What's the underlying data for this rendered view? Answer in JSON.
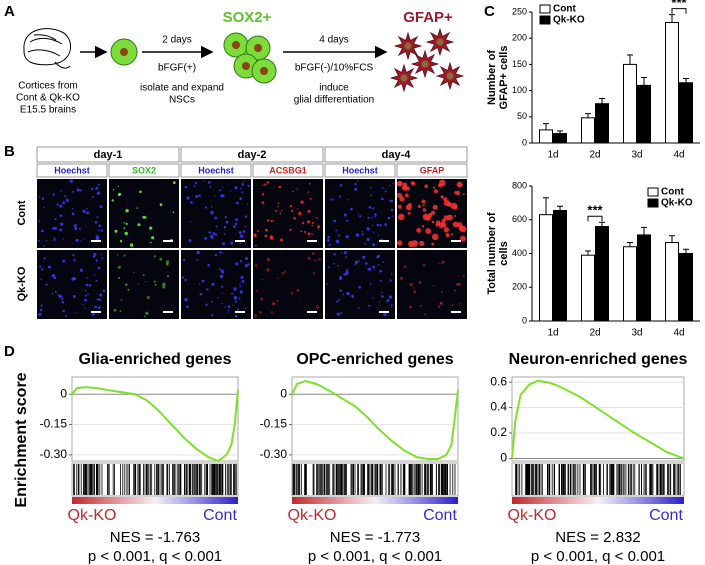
{
  "panels": [
    "A",
    "B",
    "C",
    "D"
  ],
  "schematic": {
    "source": [
      "Cortices from",
      "Cont & Qk-KO",
      "E15.5 brains"
    ],
    "step1": {
      "duration": "2 days",
      "condition": "bFGF(+)",
      "description": [
        "isolate and expand",
        "NSCs"
      ]
    },
    "stage1": "SOX2+",
    "step2": {
      "duration": "4 days",
      "condition": "bFGF(-)/10%FCS",
      "description": [
        "induce",
        "glial differentiation"
      ]
    },
    "stage2": "GFAP+"
  },
  "micrographs": {
    "days": [
      "day-1",
      "day-2",
      "day-4"
    ],
    "stains": [
      "Hoechst",
      "SOX2",
      "Hoechst",
      "ACSBG1",
      "Hoechst",
      "GFAP"
    ],
    "rows": [
      "Cont",
      "Qk-KO"
    ]
  },
  "enrichment_axis_label": "Enrichment score",
  "chart_data": [
    {
      "type": "bar",
      "ylabel": [
        "Number of",
        "GFAP+ cells"
      ],
      "categories": [
        "1d",
        "2d",
        "3d",
        "4d"
      ],
      "series": [
        {
          "name": "Cont",
          "color": "#ffffff",
          "values": [
            25,
            48,
            150,
            230
          ],
          "errors": [
            12,
            8,
            18,
            15
          ]
        },
        {
          "name": "Qk-KO",
          "color": "#000000",
          "values": [
            18,
            75,
            110,
            115
          ],
          "errors": [
            5,
            10,
            15,
            8
          ]
        }
      ],
      "ylim": [
        0,
        250
      ],
      "yticks": [
        0,
        50,
        100,
        150,
        200,
        250
      ],
      "grid": false,
      "legend": "top-left",
      "annotation": "***"
    },
    {
      "type": "bar",
      "ylabel": [
        "Total number of",
        "cells"
      ],
      "categories": [
        "1d",
        "2d",
        "3d",
        "4d"
      ],
      "series": [
        {
          "name": "Cont",
          "color": "#ffffff",
          "values": [
            630,
            390,
            440,
            465
          ],
          "errors": [
            100,
            25,
            25,
            40
          ]
        },
        {
          "name": "Qk-KO",
          "color": "#000000",
          "values": [
            655,
            560,
            510,
            400
          ],
          "errors": [
            25,
            25,
            45,
            25
          ]
        }
      ],
      "ylim": [
        0,
        800
      ],
      "yticks": [
        0,
        200,
        400,
        600,
        800
      ],
      "grid": false,
      "legend": "top-right",
      "annotation": "***"
    },
    {
      "type": "line",
      "title": "Glia-enriched genes",
      "color": "#7fe02a",
      "x": [
        0,
        3,
        8,
        15,
        22,
        30,
        38,
        45,
        52,
        60,
        68,
        75,
        82,
        88,
        93,
        96,
        98,
        100
      ],
      "values": [
        0,
        0.03,
        0.035,
        0.03,
        0.02,
        0.01,
        0,
        -0.03,
        -0.08,
        -0.15,
        -0.22,
        -0.27,
        -0.31,
        -0.33,
        -0.3,
        -0.25,
        -0.15,
        0.02
      ],
      "xlim": [
        0,
        100
      ],
      "ylim": [
        -0.33,
        0.085
      ],
      "yticks": [
        0,
        -0.15,
        {
          "value": -0.3,
          "label": "-0.30"
        }
      ],
      "grid": true,
      "rank_labels": [
        "Qk-KO",
        "Cont"
      ],
      "stats": [
        "NES = -1.763",
        "p < 0.001, q < 0.001"
      ]
    },
    {
      "type": "line",
      "title": "OPC-enriched genes",
      "color": "#7fe02a",
      "x": [
        0,
        3,
        8,
        15,
        22,
        30,
        38,
        45,
        52,
        60,
        68,
        75,
        82,
        88,
        93,
        96,
        98,
        100
      ],
      "values": [
        0,
        0.05,
        0.065,
        0.05,
        0.02,
        -0.02,
        -0.06,
        -0.11,
        -0.17,
        -0.23,
        -0.28,
        -0.31,
        -0.32,
        -0.32,
        -0.3,
        -0.25,
        -0.12,
        0.02
      ],
      "xlim": [
        0,
        100
      ],
      "ylim": [
        -0.33,
        0.085
      ],
      "yticks": [
        0,
        -0.15,
        {
          "value": -0.3,
          "label": "-0.30"
        }
      ],
      "grid": true,
      "rank_labels": [
        "Qk-KO",
        "Cont"
      ],
      "stats": [
        "NES = -1.773",
        "p < 0.001, q < 0.001"
      ]
    },
    {
      "type": "line",
      "title": "Neuron-enriched genes",
      "color": "#7fe02a",
      "x": [
        0,
        2,
        5,
        10,
        15,
        20,
        25,
        30,
        40,
        50,
        60,
        70,
        80,
        90,
        100
      ],
      "values": [
        0,
        0.3,
        0.5,
        0.58,
        0.61,
        0.6,
        0.58,
        0.55,
        0.48,
        0.39,
        0.3,
        0.21,
        0.13,
        0.05,
        0
      ],
      "xlim": [
        0,
        100
      ],
      "ylim": [
        -0.02,
        0.64
      ],
      "yticks": [
        0.6,
        0.4,
        0.2,
        0
      ],
      "grid": true,
      "rank_labels": [
        "Qk-KO",
        "Cont"
      ],
      "stats": [
        "NES = 2.832",
        "p < 0.001, q < 0.001"
      ]
    }
  ]
}
